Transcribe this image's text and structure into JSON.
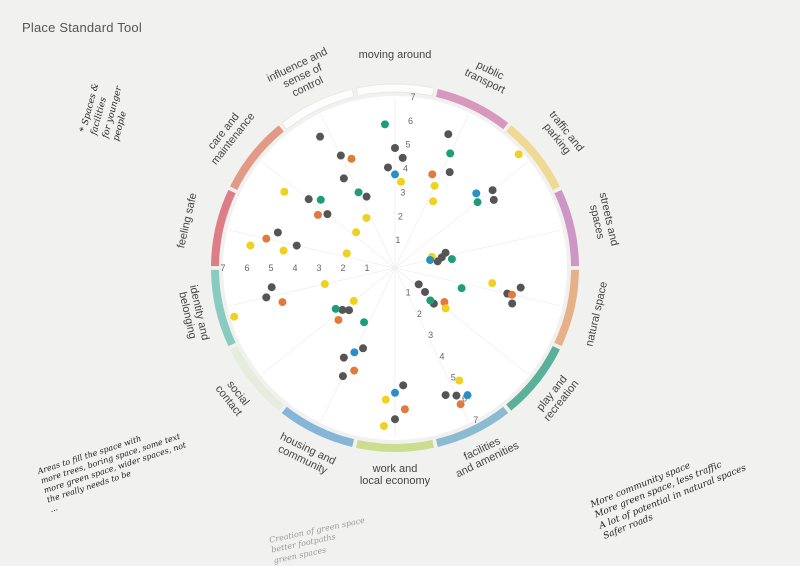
{
  "title": "Place Standard Tool",
  "colors": {
    "paper": "#f1f1ef",
    "dot_dark": "#555555",
    "dot_green": "#1e9e78",
    "dot_orange": "#e07b3c",
    "dot_blue": "#2a8fc4",
    "dot_yellow": "#f0d21e"
  },
  "chart_data": {
    "type": "radar-dot-plot",
    "scale": [
      "1",
      "2",
      "3",
      "4",
      "5",
      "6",
      "7"
    ],
    "scale_max": 7,
    "themes": [
      {
        "label": "moving around",
        "color": "#ffffff",
        "dots": [
          {
            "v": 6,
            "c": "dot_green"
          },
          {
            "v": 5,
            "c": "dot_dark"
          },
          {
            "v": 4.6,
            "c": "dot_dark"
          },
          {
            "v": 4.2,
            "c": "dot_dark"
          },
          {
            "v": 3.9,
            "c": "dot_blue"
          },
          {
            "v": 3.6,
            "c": "dot_yellow"
          }
        ]
      },
      {
        "label": "public transport",
        "color": "#d58eb8",
        "dots": [
          {
            "v": 6,
            "c": "dot_dark"
          },
          {
            "v": 5.3,
            "c": "dot_green"
          },
          {
            "v": 4.6,
            "c": "dot_dark"
          },
          {
            "v": 4.2,
            "c": "dot_orange"
          },
          {
            "v": 3.8,
            "c": "dot_yellow"
          },
          {
            "v": 3.2,
            "c": "dot_yellow"
          }
        ]
      },
      {
        "label": "traffic and parking",
        "color": "#f0d68a",
        "dots": [
          {
            "v": 7,
            "c": "dot_yellow"
          },
          {
            "v": 5.2,
            "c": "dot_dark"
          },
          {
            "v": 5,
            "c": "dot_dark"
          },
          {
            "v": 4.6,
            "c": "dot_blue"
          },
          {
            "v": 4.4,
            "c": "dot_green"
          }
        ]
      },
      {
        "label": "streets and spaces",
        "color": "#c98cc0",
        "dots": [
          {
            "v": 2.2,
            "c": "dot_dark"
          },
          {
            "v": 2.0,
            "c": "dot_dark"
          },
          {
            "v": 1.8,
            "c": "dot_dark"
          },
          {
            "v": 1.6,
            "c": "dot_yellow"
          },
          {
            "v": 1.5,
            "c": "dot_blue"
          },
          {
            "v": 2.4,
            "c": "dot_green"
          }
        ]
      },
      {
        "label": "natural space",
        "color": "#e4a87c",
        "dots": [
          {
            "v": 4.1,
            "c": "dot_yellow"
          },
          {
            "v": 4.8,
            "c": "dot_dark"
          },
          {
            "v": 5.1,
            "c": "dot_dark"
          },
          {
            "v": 5.3,
            "c": "dot_dark"
          },
          {
            "v": 5.0,
            "c": "dot_orange"
          },
          {
            "v": 2.9,
            "c": "dot_green"
          }
        ]
      },
      {
        "label": "play and recreation",
        "color": "#4aaa8e",
        "dots": [
          {
            "v": 1.2,
            "c": "dot_dark"
          },
          {
            "v": 1.6,
            "c": "dot_dark"
          },
          {
            "v": 2.2,
            "c": "dot_dark"
          },
          {
            "v": 2.5,
            "c": "dot_orange"
          },
          {
            "v": 2.7,
            "c": "dot_yellow"
          },
          {
            "v": 2.0,
            "c": "dot_green"
          }
        ]
      },
      {
        "label": "facilities and amenities",
        "color": "#7fb5cc",
        "dots": [
          {
            "v": 5.4,
            "c": "dot_yellow"
          },
          {
            "v": 5.9,
            "c": "dot_dark"
          },
          {
            "v": 5.7,
            "c": "dot_dark"
          },
          {
            "v": 6.1,
            "c": "dot_blue"
          },
          {
            "v": 6.3,
            "c": "dot_orange"
          }
        ]
      },
      {
        "label": "work and local economy",
        "color": "#c8da82",
        "dots": [
          {
            "v": 4.9,
            "c": "dot_dark"
          },
          {
            "v": 5.2,
            "c": "dot_blue"
          },
          {
            "v": 5.5,
            "c": "dot_yellow"
          },
          {
            "v": 5.9,
            "c": "dot_orange"
          },
          {
            "v": 6.3,
            "c": "dot_dark"
          },
          {
            "v": 6.6,
            "c": "dot_yellow"
          }
        ]
      },
      {
        "label": "housing and community",
        "color": "#79aed4",
        "dots": [
          {
            "v": 3.6,
            "c": "dot_dark"
          },
          {
            "v": 3.9,
            "c": "dot_blue"
          },
          {
            "v": 4.3,
            "c": "dot_dark"
          },
          {
            "v": 4.6,
            "c": "dot_orange"
          },
          {
            "v": 5.0,
            "c": "dot_dark"
          },
          {
            "v": 2.6,
            "c": "dot_green"
          }
        ]
      },
      {
        "label": "social contact",
        "color": "#e6ecdc",
        "dots": [
          {
            "v": 2.6,
            "c": "dot_dark"
          },
          {
            "v": 2.8,
            "c": "dot_dark"
          },
          {
            "v": 3.0,
            "c": "dot_green"
          },
          {
            "v": 3.2,
            "c": "dot_orange"
          },
          {
            "v": 2.2,
            "c": "dot_yellow"
          }
        ]
      },
      {
        "label": "identity and belonging",
        "color": "#7dc6b8",
        "dots": [
          {
            "v": 7,
            "c": "dot_yellow"
          },
          {
            "v": 5.5,
            "c": "dot_dark"
          },
          {
            "v": 5.2,
            "c": "dot_dark"
          },
          {
            "v": 4.9,
            "c": "dot_orange"
          },
          {
            "v": 3.0,
            "c": "dot_yellow"
          }
        ]
      },
      {
        "label": "feeling safe",
        "color": "#d9707b",
        "dots": [
          {
            "v": 6.1,
            "c": "dot_yellow"
          },
          {
            "v": 5.5,
            "c": "dot_orange"
          },
          {
            "v": 5.1,
            "c": "dot_dark"
          },
          {
            "v": 4.7,
            "c": "dot_yellow"
          },
          {
            "v": 4.2,
            "c": "dot_dark"
          },
          {
            "v": 2.1,
            "c": "dot_yellow"
          }
        ]
      },
      {
        "label": "care and maintenance",
        "color": "#e0907a",
        "dots": [
          {
            "v": 5.6,
            "c": "dot_yellow"
          },
          {
            "v": 4.6,
            "c": "dot_dark"
          },
          {
            "v": 4.2,
            "c": "dot_green"
          },
          {
            "v": 3.9,
            "c": "dot_orange"
          },
          {
            "v": 3.6,
            "c": "dot_dark"
          },
          {
            "v": 2.2,
            "c": "dot_yellow"
          }
        ]
      },
      {
        "label": "influence and sense of control",
        "color": "#ffffff",
        "dots": [
          {
            "v": 6.3,
            "c": "dot_dark"
          },
          {
            "v": 5.2,
            "c": "dot_dark"
          },
          {
            "v": 4.9,
            "c": "dot_orange"
          },
          {
            "v": 4.3,
            "c": "dot_dark"
          },
          {
            "v": 3.5,
            "c": "dot_green"
          },
          {
            "v": 3.2,
            "c": "dot_dark"
          },
          {
            "v": 2.4,
            "c": "dot_yellow"
          }
        ]
      }
    ]
  },
  "notes": {
    "top_left": "* Spaces &\nfacilities\nfor younger\npeople",
    "bottom_left": "Areas to fill the space with\nmore trees, boring space, some text\nmore green space, wider spaces, not\nthe really needs to be\n...",
    "bottom_right": "More community space\nMore green space, less traffic\nA lot of potential in natural spaces\nSafer roads",
    "bottom_center": "Creation of green space\nbetter footpaths\ngreen spaces"
  }
}
